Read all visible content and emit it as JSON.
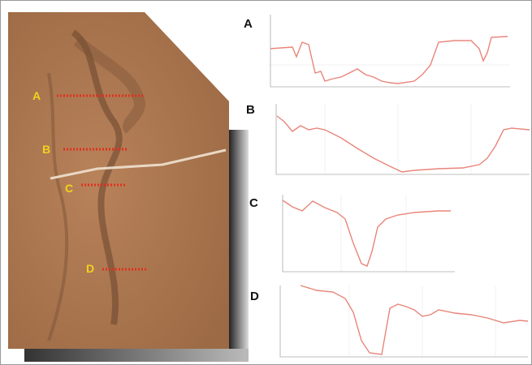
{
  "image_labels": [
    "A",
    "B",
    "C",
    "D"
  ],
  "panel_labels": [
    "A",
    "B",
    "C",
    "D"
  ]
}
